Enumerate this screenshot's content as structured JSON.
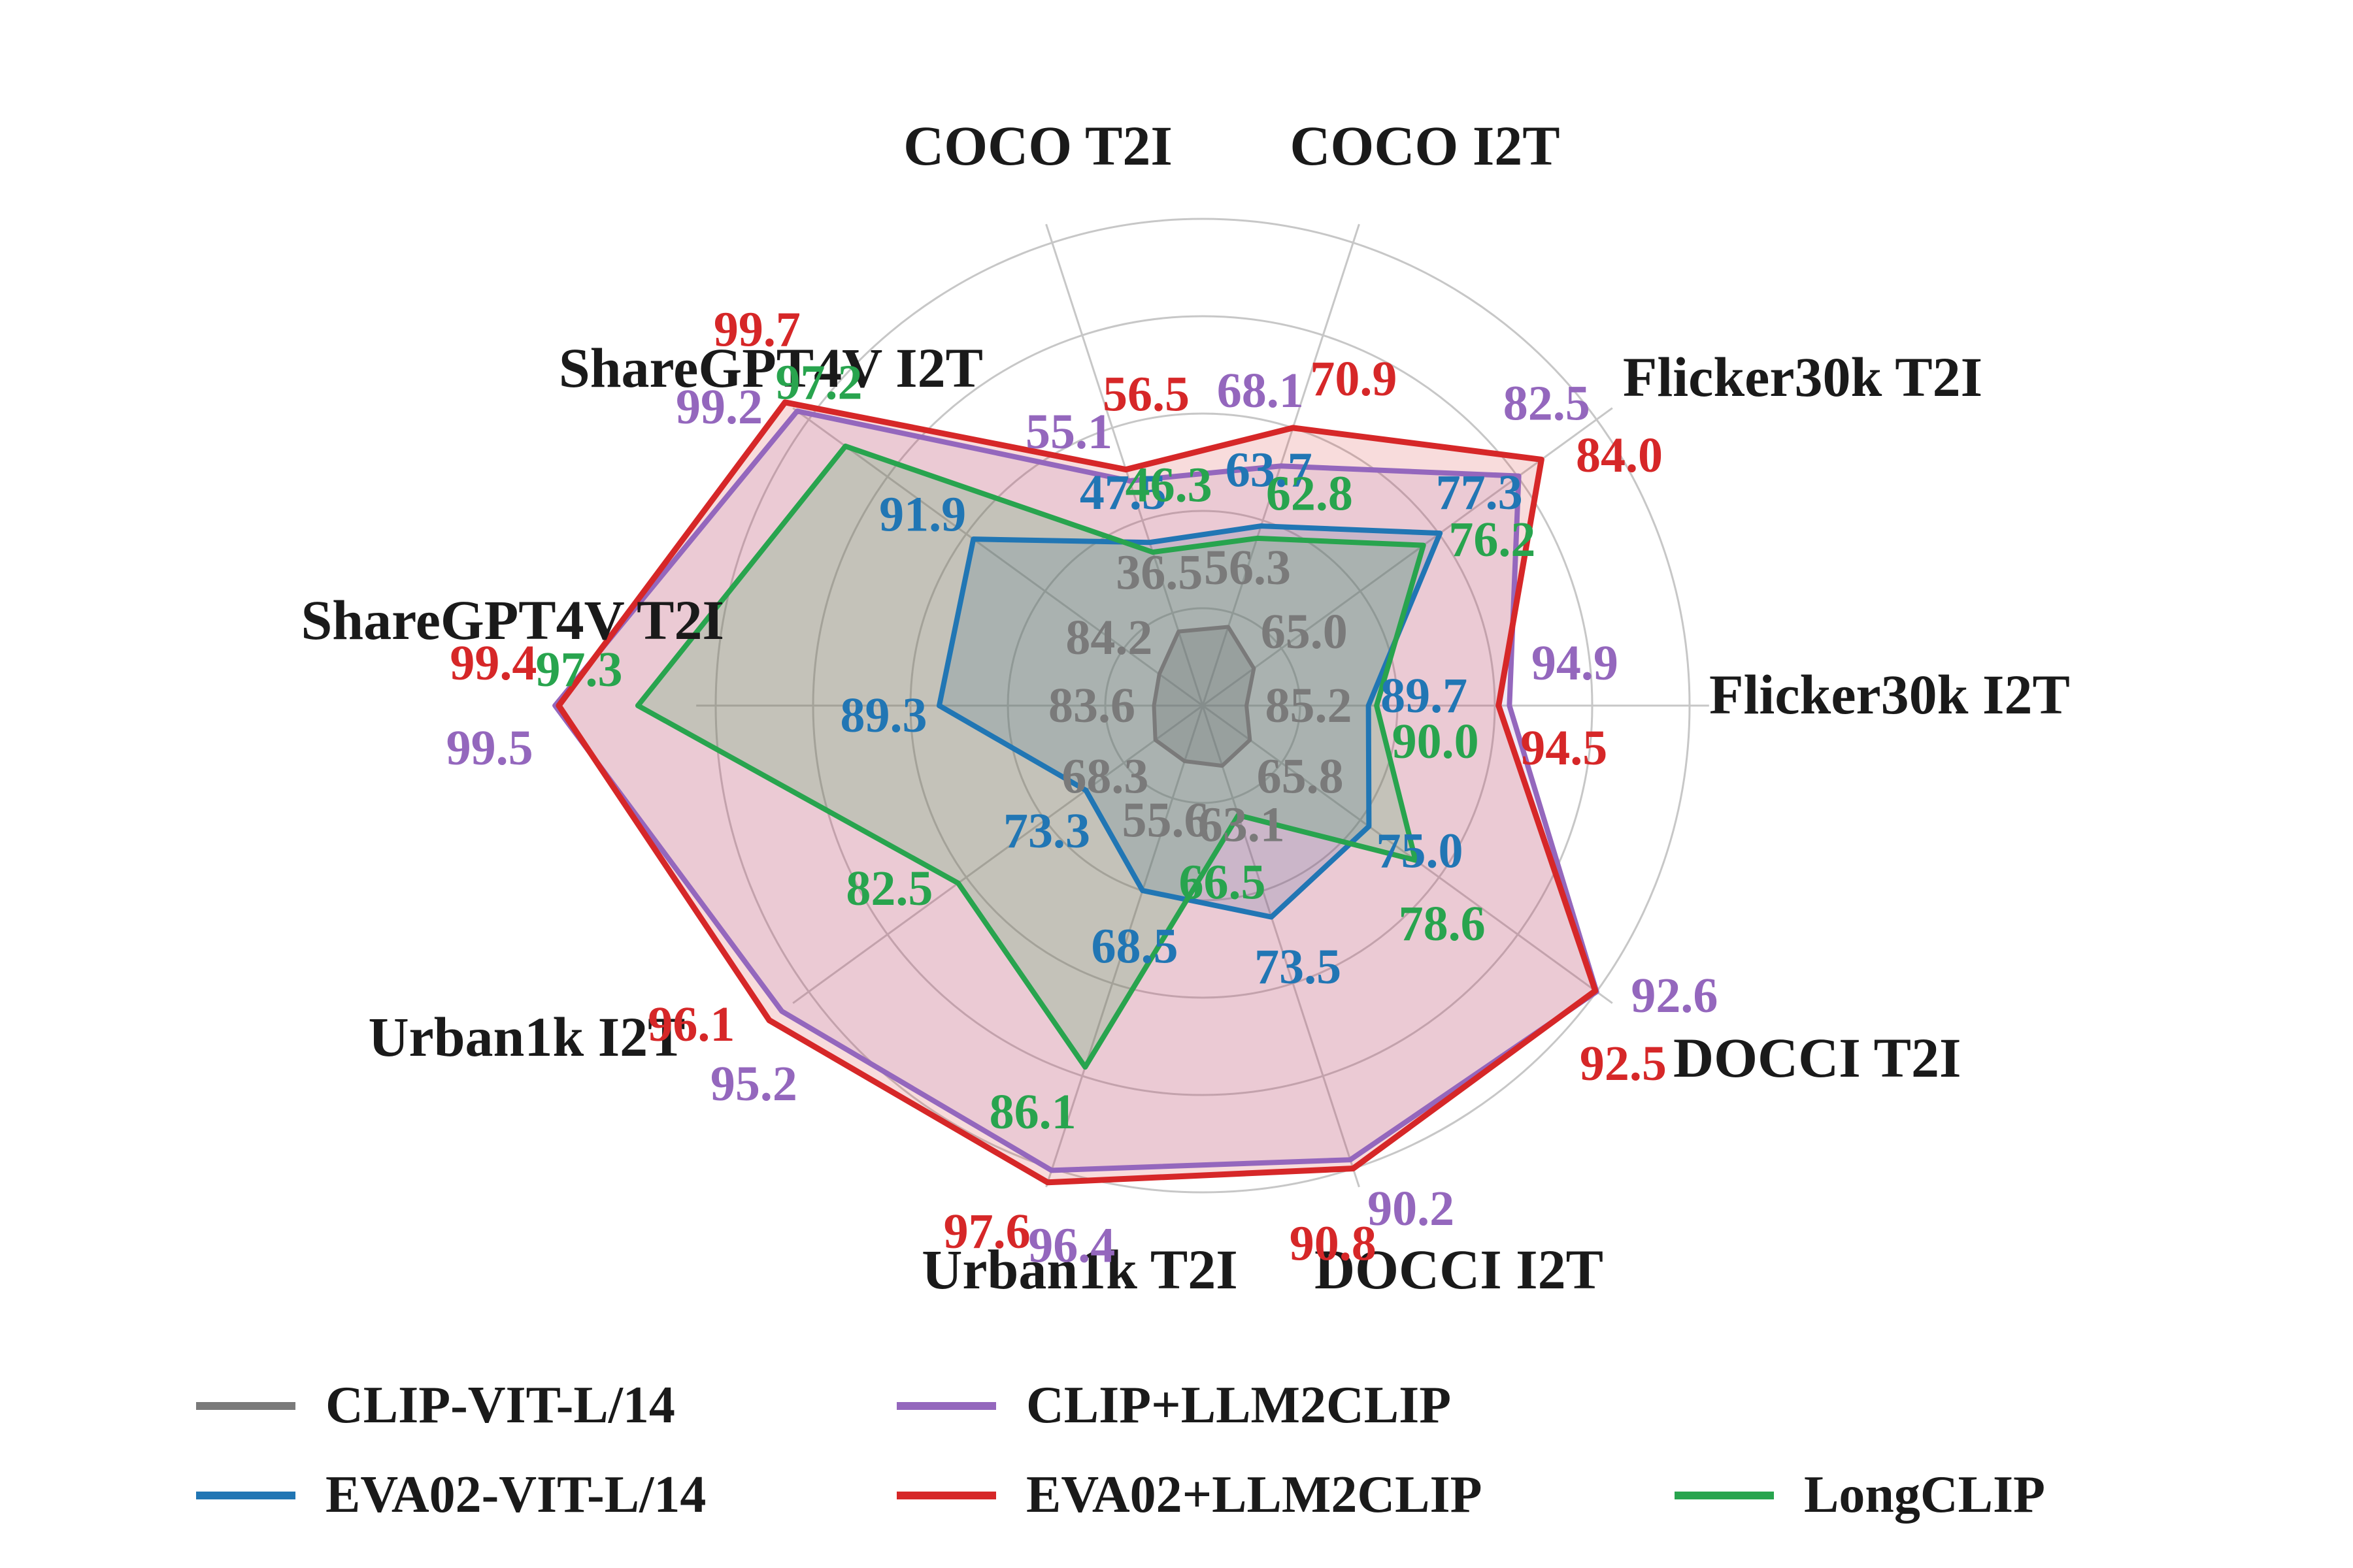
{
  "chart_data": {
    "type": "radar",
    "title": "",
    "categories": [
      "COCO T2I",
      "COCO I2T",
      "Flicker30k T2I",
      "Flicker30k I2T",
      "DOCCI T2I",
      "DOCCI I2T",
      "Urban1k T2I",
      "Urban1k I2T",
      "ShareGPT4V T2I",
      "ShareGPT4V I2T"
    ],
    "series": [
      {
        "name": "CLIP-VIT-L/14",
        "color": "#7a7a7a",
        "values": [
          36.5,
          56.3,
          65.0,
          85.2,
          65.8,
          63.1,
          55.6,
          68.3,
          83.6,
          84.2
        ]
      },
      {
        "name": "EVA02-VIT-L/14",
        "color": "#2176b4",
        "values": [
          47.5,
          63.7,
          77.3,
          89.7,
          75.0,
          73.5,
          68.5,
          73.3,
          89.3,
          91.9
        ]
      },
      {
        "name": "CLIP+LLM2CLIP",
        "color": "#9467bd",
        "values": [
          55.1,
          68.1,
          82.5,
          94.9,
          92.6,
          90.2,
          96.4,
          95.2,
          99.5,
          99.2
        ]
      },
      {
        "name": "EVA02+LLM2CLIP",
        "color": "#d62728",
        "values": [
          56.5,
          70.9,
          84.0,
          94.5,
          92.5,
          90.8,
          97.6,
          96.1,
          99.4,
          99.7
        ]
      },
      {
        "name": "LongCLIP",
        "color": "#28a44e",
        "values": [
          46.3,
          62.8,
          76.2,
          90.0,
          78.6,
          66.5,
          86.1,
          82.5,
          97.3,
          97.2
        ]
      }
    ],
    "legend": {
      "row1": [
        {
          "series": 0
        },
        {
          "series": 2
        }
      ],
      "row2": [
        {
          "series": 1
        },
        {
          "series": 3
        },
        {
          "series": 4
        }
      ]
    },
    "grid": {
      "rings": 5,
      "color": "#c7c7c7"
    },
    "value_label_decimals": 1
  }
}
